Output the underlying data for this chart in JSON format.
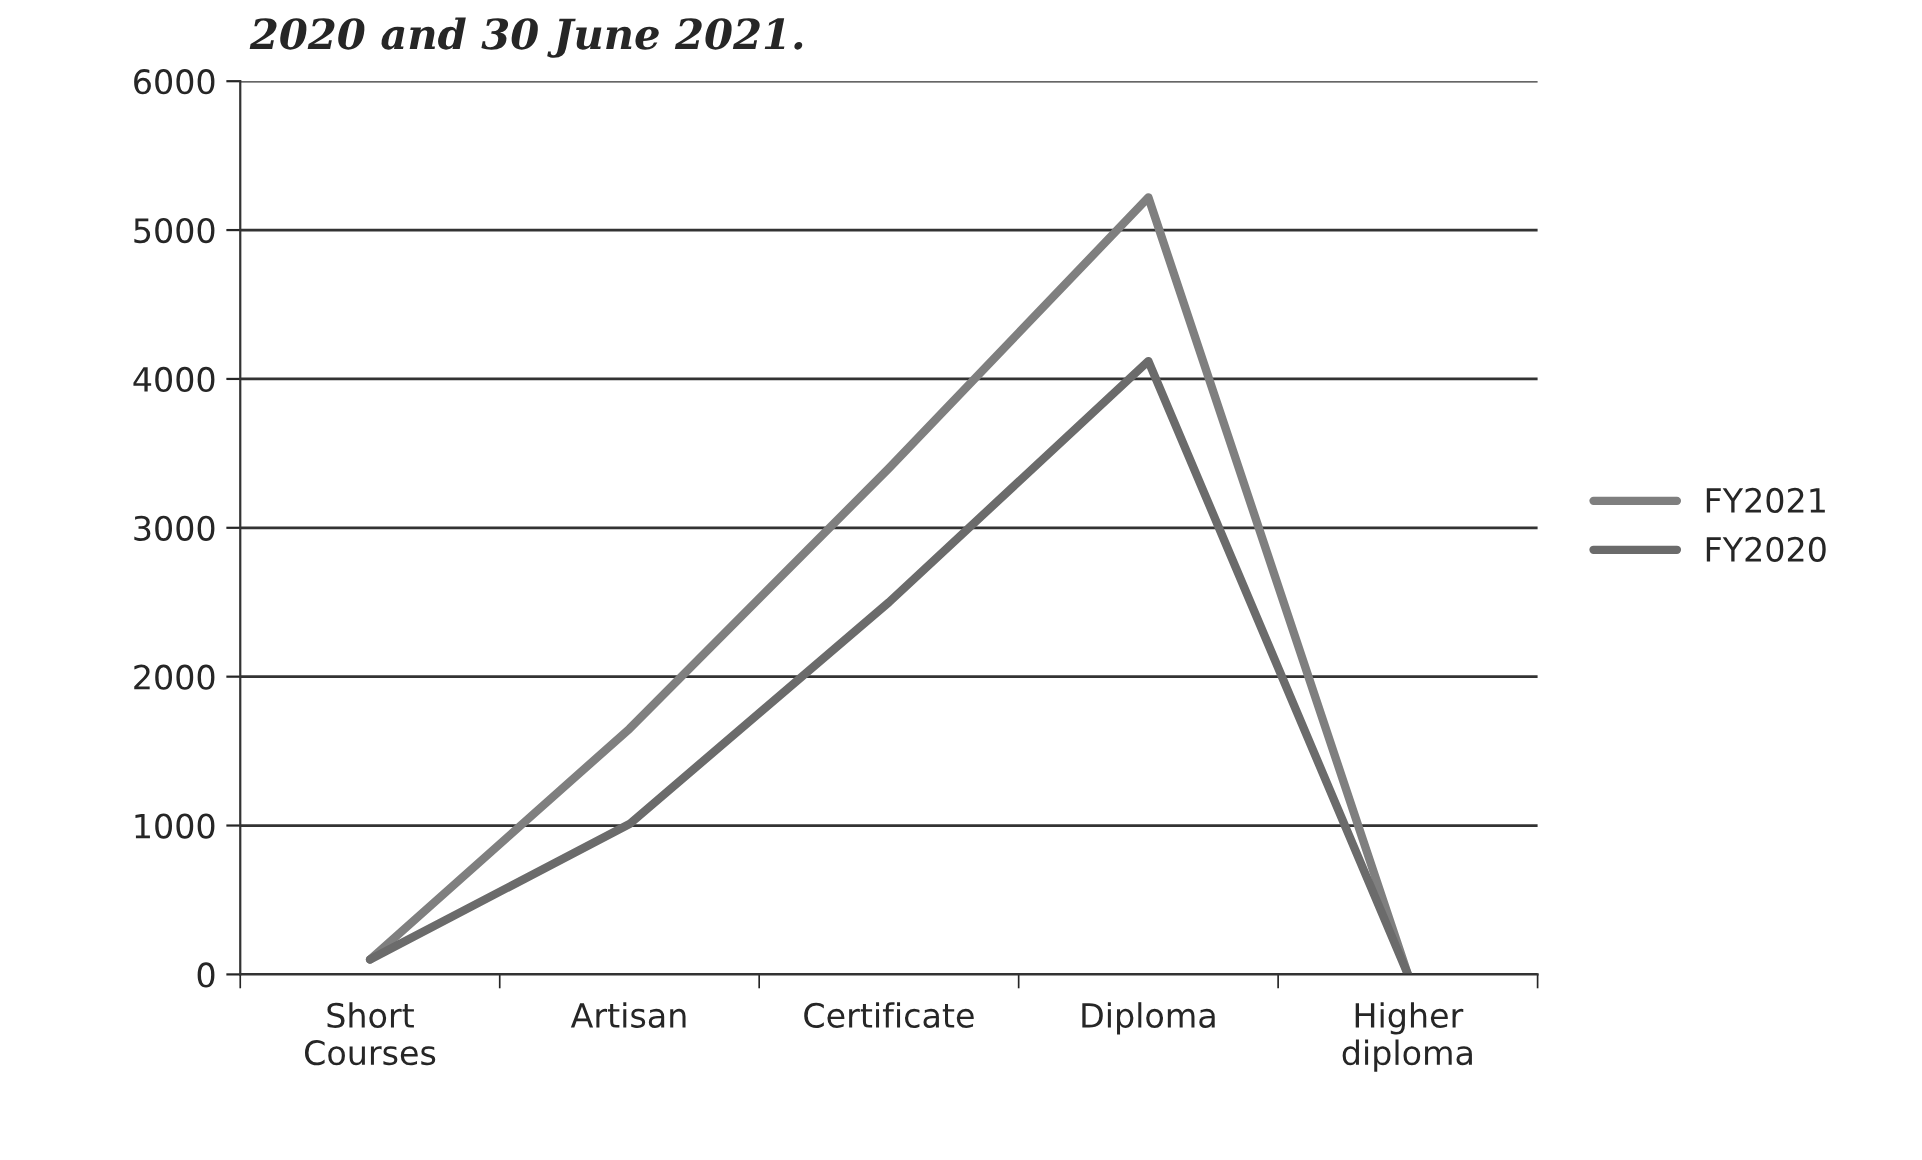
{
  "chart_data": {
    "type": "line",
    "title": "2020 and 30 June 2021.",
    "categories": [
      "Short\nCourses",
      "Artisan",
      "Certificate",
      "Diploma",
      "Higher\ndiploma"
    ],
    "series": [
      {
        "name": "FY2021",
        "color": "#7f7f7f",
        "values": [
          100,
          1650,
          3400,
          5220,
          0
        ]
      },
      {
        "name": "FY2020",
        "color": "#6b6b6b",
        "values": [
          100,
          1010,
          2500,
          4120,
          0
        ]
      }
    ],
    "ylim": [
      0,
      6000
    ],
    "yticks": [
      0,
      1000,
      2000,
      3000,
      4000,
      5000,
      6000
    ],
    "grid": "y",
    "legend": "right",
    "marker": "none",
    "line_style": "solid"
  }
}
